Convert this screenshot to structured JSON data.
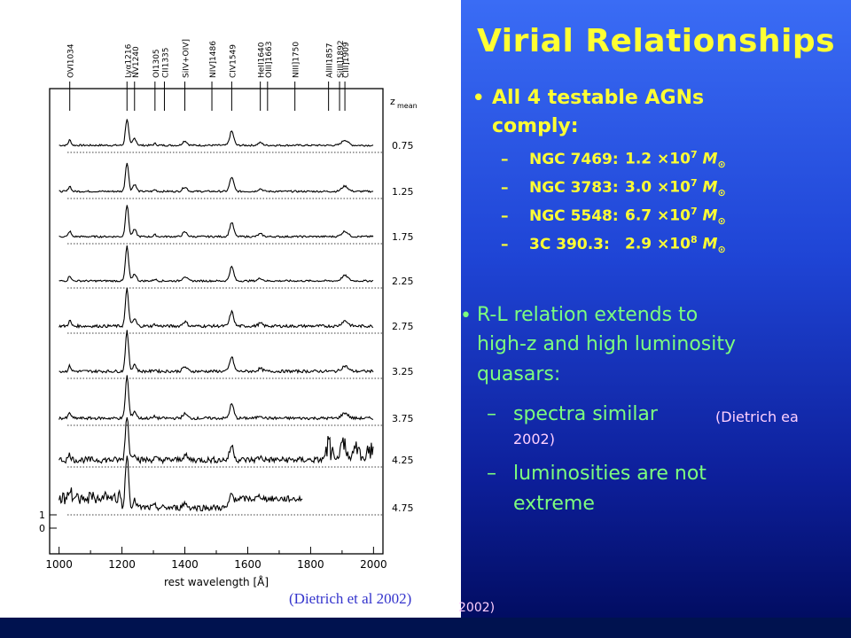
{
  "slide": {
    "title": "Virial Relationships",
    "bullet1": {
      "text_line1": "All 4 testable AGNs",
      "text_line2": "comply:",
      "items": [
        {
          "name": "NGC 7469:",
          "mantissa": "1.2",
          "times": "×10",
          "exp": "7",
          "unit": "M",
          "sun": "⊙"
        },
        {
          "name": "NGC 3783:",
          "mantissa": "3.0",
          "times": "×10",
          "exp": "7",
          "unit": "M",
          "sun": "⊙"
        },
        {
          "name": "NGC 5548:",
          "mantissa": "6.7",
          "times": "×10",
          "exp": "7",
          "unit": "M",
          "sun": "⊙"
        },
        {
          "name": "3C 390.3:",
          "mantissa": "2.9",
          "times": "×10",
          "exp": "8",
          "unit": "M",
          "sun": "⊙"
        }
      ]
    },
    "bullet2": {
      "line1": "R-L relation extends to",
      "line2": "high-z and high luminosity",
      "line3": "quasars:",
      "sub1_main": "spectra similar",
      "sub1_ref_a": "(Dietrich ea",
      "sub1_ref_b": "2002)",
      "sub2_line1": "luminosities are not",
      "sub2_line2": "extreme"
    },
    "caption": "(Dietrich et al 2002)",
    "caption_behind": "2002)"
  },
  "figure": {
    "line_labels": [
      "OVI1034",
      "Lyα1216",
      "NV1240",
      "OI1305",
      "CII1335",
      "SiIV+OIV]",
      "NIV]1486",
      "CIV1549",
      "HeII1640",
      "OIII]1663",
      "NIII]1750",
      "AlIII1857",
      "SiIII]1892",
      "CIII]1909"
    ],
    "z_header": "z",
    "z_header_sub": "mean",
    "z_values": [
      "0.75",
      "1.25",
      "1.75",
      "2.25",
      "2.75",
      "3.25",
      "3.75",
      "4.25",
      "4.75"
    ],
    "x_ticks": [
      "1000",
      "1200",
      "1400",
      "1600",
      "1800",
      "2000"
    ],
    "y_ticks": [
      "1",
      "0"
    ],
    "xlabel": "rest wavelength [Å]"
  }
}
